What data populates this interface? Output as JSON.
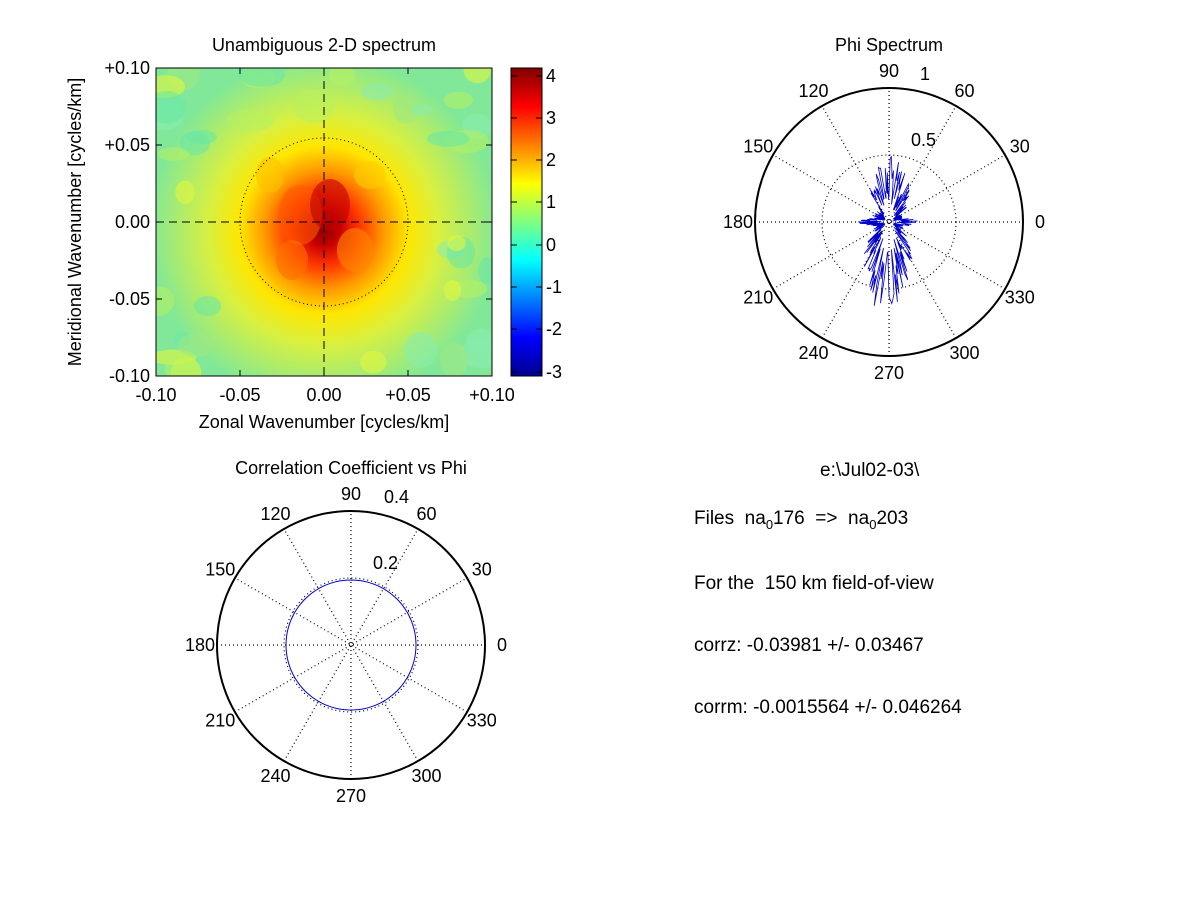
{
  "panel_heatmap": {
    "title": "Unambiguous 2-D spectrum",
    "xlabel": "Zonal Wavenumber [cycles/km]",
    "ylabel": "Meridional Wavenumber [cycles/km]",
    "xticks": [
      "-0.10",
      "-0.05",
      "0.00",
      "+0.05",
      "+0.10"
    ],
    "yticks": [
      "+0.10",
      "+0.05",
      "0.00",
      "-0.05",
      "-0.10"
    ],
    "colorbar_ticks": [
      "4",
      "3",
      "2",
      "1",
      "0",
      "-1",
      "-2",
      "-3"
    ]
  },
  "panel_phi": {
    "title": "Phi Spectrum",
    "radial_ticks": [
      "1",
      "0.5"
    ],
    "angle_labels": [
      "0",
      "30",
      "60",
      "90",
      "120",
      "150",
      "180",
      "210",
      "240",
      "270",
      "300",
      "330"
    ]
  },
  "panel_corr": {
    "title": "Correlation Coefficient vs Phi",
    "radial_ticks": [
      "0.4",
      "0.2"
    ],
    "angle_labels": [
      "0",
      "30",
      "60",
      "90",
      "120",
      "150",
      "180",
      "210",
      "240",
      "270",
      "300",
      "330"
    ]
  },
  "info": {
    "path": "e:\\Jul02-03\\",
    "files_prefix": "Files  na",
    "files_sub1": "0",
    "files_mid": "176  =>  na",
    "files_sub2": "0",
    "files_end": "203",
    "fov": "For the  150 km field-of-view",
    "corrz": "corrz: -0.03981 +/- 0.03467",
    "corrm": "corrm: -0.0015564 +/- 0.046264"
  },
  "colors": {
    "trace": "#0000cc",
    "axis": "#000000"
  },
  "chart_data": [
    {
      "type": "heatmap",
      "title": "Unambiguous 2-D spectrum",
      "xlabel": "Zonal Wavenumber [cycles/km]",
      "ylabel": "Meridional Wavenumber [cycles/km]",
      "xlim": [
        -0.1,
        0.1
      ],
      "ylim": [
        -0.1,
        0.1
      ],
      "clim": [
        -3.2,
        4.2
      ],
      "colormap": "jet",
      "peak": {
        "x": 0.0,
        "y": -0.01,
        "value": 4.0
      },
      "background_value": 0.6,
      "reference_circle_radius": 0.05,
      "crosshair": true
    },
    {
      "type": "polar",
      "title": "Phi Spectrum",
      "rmax": 1,
      "rticks": [
        0.5,
        1
      ],
      "angles_deg": [
        0,
        15,
        30,
        45,
        60,
        75,
        90,
        105,
        120,
        135,
        150,
        165,
        180,
        195,
        210,
        225,
        240,
        255,
        270,
        285,
        300,
        315,
        330,
        345
      ],
      "values": [
        0.22,
        0.1,
        0.12,
        0.18,
        0.28,
        0.38,
        0.5,
        0.36,
        0.26,
        0.16,
        0.12,
        0.12,
        0.22,
        0.12,
        0.12,
        0.22,
        0.38,
        0.52,
        0.75,
        0.5,
        0.32,
        0.18,
        0.12,
        0.1
      ]
    },
    {
      "type": "polar",
      "title": "Correlation Coefficient vs Phi",
      "rmax": 0.4,
      "rticks": [
        0.2,
        0.4
      ],
      "angles_deg": [
        0,
        30,
        60,
        90,
        120,
        150,
        180,
        210,
        240,
        270,
        300,
        330
      ],
      "values": [
        0.2,
        0.2,
        0.2,
        0.2,
        0.2,
        0.2,
        0.2,
        0.2,
        0.2,
        0.2,
        0.2,
        0.2
      ]
    }
  ]
}
